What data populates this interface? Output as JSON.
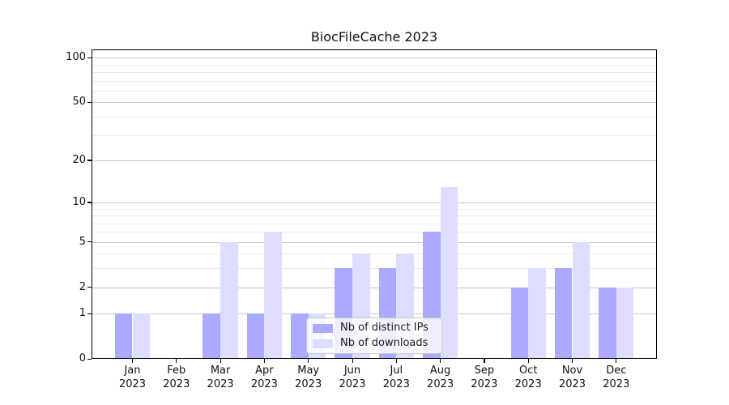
{
  "chart_data": {
    "type": "bar",
    "title": "BiocFileCache 2023",
    "categories": [
      "Jan",
      "Feb",
      "Mar",
      "Apr",
      "May",
      "Jun",
      "Jul",
      "Aug",
      "Sep",
      "Oct",
      "Nov",
      "Dec"
    ],
    "year": "2023",
    "series": [
      {
        "name": "Nb of distinct IPs",
        "color": "#aaaaff",
        "values": [
          1,
          0,
          1,
          1,
          1,
          3,
          3,
          6,
          0,
          2,
          3,
          2
        ]
      },
      {
        "name": "Nb of downloads",
        "color": "#ddddff",
        "values": [
          1,
          0,
          5,
          6,
          1,
          4,
          4,
          13,
          0,
          3,
          5,
          2
        ]
      }
    ],
    "xlabel": "",
    "ylabel": "",
    "y_axis": {
      "scale": "log10(1+x)",
      "ylim": [
        0,
        115
      ],
      "major_ticks": [
        0,
        1,
        2,
        5,
        10,
        20,
        50,
        100
      ],
      "major_tick_labels": [
        "0",
        "1",
        "2",
        "5",
        "10",
        "20",
        "50",
        "100"
      ],
      "minor_gridlines": [
        3,
        4,
        6,
        7,
        8,
        9,
        30,
        40,
        60,
        70,
        80,
        90
      ]
    },
    "grid": "horizontal",
    "legend": {
      "position": "inside-bottom-left-of-center",
      "entries": [
        "Nb of distinct IPs",
        "Nb of downloads"
      ]
    },
    "colors": {
      "bar_distinct_ips": "#aaaaff",
      "bar_downloads": "#ddddff",
      "major_grid": "#c9c9c9",
      "minor_grid": "#ededed",
      "spine": "#000000",
      "legend_border": "#c9c9c9"
    }
  }
}
